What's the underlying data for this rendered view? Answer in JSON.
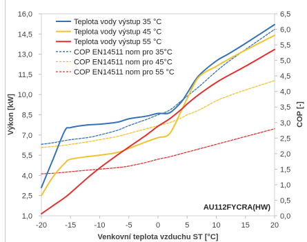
{
  "chart_data": {
    "type": "line",
    "xlabel": "Venkovní teplota vzduchu ST [°C]",
    "ylabel": "Výkon [kW]",
    "y2label": "COP [-]",
    "annotation": "AU112FYCRA(HW)",
    "xlim": [
      -20,
      20
    ],
    "ylim": [
      1.0,
      16.0
    ],
    "y2lim": [
      0.0,
      6.5
    ],
    "x_ticks": [
      "-20",
      "-15",
      "-10",
      "-5",
      "0",
      "5",
      "10",
      "15",
      "20"
    ],
    "y_ticks": [
      "1,0",
      "2,5",
      "4,0",
      "5,5",
      "7,0",
      "8,5",
      "10,0",
      "11,5",
      "13,0",
      "14,5",
      "16,0"
    ],
    "y2_ticks": [
      "0,0",
      "0,5",
      "1,0",
      "1,5",
      "2,0",
      "2,5",
      "3,0",
      "3,5",
      "4,0",
      "4,5",
      "5,0",
      "5,5",
      "6,0",
      "6,5"
    ],
    "grid": false,
    "legend_position": "top-left",
    "x": [
      -20,
      -18,
      -16,
      -15,
      -12,
      -10,
      -7,
      -5,
      -2,
      0,
      2,
      4,
      5,
      7,
      10,
      12,
      15,
      20
    ],
    "series": [
      {
        "name": "Teplota vody výstup 35 °C",
        "secondary_axis": false,
        "dashed": false,
        "color": "#3571b5",
        "values": [
          3.1,
          5.2,
          7.3,
          7.55,
          7.75,
          7.8,
          7.95,
          8.2,
          8.4,
          8.6,
          8.65,
          9.45,
          10.1,
          11.4,
          12.5,
          13.0,
          13.8,
          15.2
        ]
      },
      {
        "name": "Teplota vody výstup 45 °C",
        "secondary_axis": false,
        "dashed": false,
        "color": "#f2c12e",
        "values": [
          2.5,
          3.9,
          4.9,
          5.2,
          5.4,
          5.5,
          5.7,
          6.0,
          6.5,
          6.8,
          7.1,
          8.8,
          9.7,
          11.3,
          12.1,
          12.6,
          13.3,
          14.4
        ]
      },
      {
        "name": "Teplota vody výstup 55 °C",
        "secondary_axis": false,
        "dashed": false,
        "color": "#e2302d",
        "values": [
          1.15,
          1.75,
          2.35,
          2.7,
          3.85,
          4.55,
          5.5,
          6.1,
          7.0,
          7.65,
          8.2,
          8.9,
          9.3,
          10.0,
          10.9,
          11.4,
          12.1,
          13.35
        ]
      },
      {
        "name": "COP EN14511 nom pro 35°C",
        "secondary_axis": true,
        "dashed": true,
        "color": "#3571b5",
        "values": [
          2.3,
          2.35,
          2.42,
          2.45,
          2.52,
          2.6,
          2.75,
          2.9,
          3.1,
          3.25,
          3.4,
          3.7,
          3.85,
          4.15,
          4.65,
          4.95,
          5.35,
          6.0
        ]
      },
      {
        "name": "COP EN14511 nom pro 45°C",
        "secondary_axis": true,
        "dashed": true,
        "color": "#f2c12e",
        "values": [
          2.2,
          2.23,
          2.27,
          2.3,
          2.38,
          2.45,
          2.55,
          2.65,
          2.8,
          2.9,
          3.0,
          3.15,
          3.25,
          3.4,
          3.7,
          3.85,
          4.05,
          4.35
        ]
      },
      {
        "name": "COP EN14511 nom pro 55 °C",
        "secondary_axis": true,
        "dashed": true,
        "color": "#e2302d",
        "values": [
          1.35,
          1.37,
          1.4,
          1.42,
          1.47,
          1.5,
          1.55,
          1.6,
          1.72,
          1.82,
          1.9,
          2.0,
          2.05,
          2.15,
          2.3,
          2.4,
          2.55,
          2.8
        ]
      }
    ]
  }
}
